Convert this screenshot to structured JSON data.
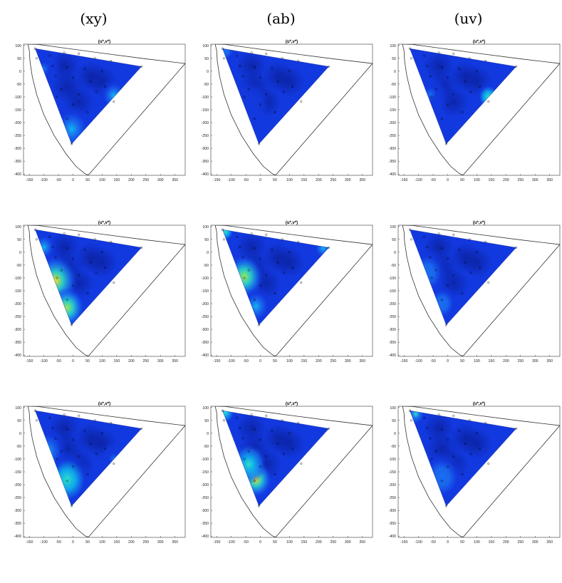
{
  "columns": [
    "(xy)",
    "(ab)",
    "(uv)"
  ],
  "plot_title": "(u*,v*)",
  "chart_data": {
    "type": "heatmap",
    "title": "(u*,v*)",
    "xlim": [
      -170,
      385
    ],
    "ylim": [
      -405,
      105
    ],
    "x_ticks": [
      -150,
      -100,
      -50,
      0,
      50,
      100,
      150,
      200,
      250,
      300,
      350
    ],
    "y_ticks": [
      100,
      50,
      0,
      -50,
      -100,
      -150,
      -200,
      -250,
      -300,
      -350,
      -400
    ],
    "gamut_vertices": [
      [
        -130,
        88
      ],
      [
        235,
        18
      ],
      [
        -5,
        -283
      ]
    ],
    "sample_points": [
      [
        -130,
        88
      ],
      [
        -125,
        50
      ],
      [
        -80,
        60
      ],
      [
        -30,
        72
      ],
      [
        20,
        68
      ],
      [
        75,
        50
      ],
      [
        130,
        40
      ],
      [
        235,
        18
      ],
      [
        -70,
        20
      ],
      [
        -20,
        15
      ],
      [
        40,
        10
      ],
      [
        100,
        0
      ],
      [
        -60,
        -20
      ],
      [
        0,
        -25
      ],
      [
        60,
        -40
      ],
      [
        110,
        -60
      ],
      [
        -40,
        -70
      ],
      [
        20,
        -90
      ],
      [
        80,
        -80
      ],
      [
        140,
        -118
      ],
      [
        -55,
        -100
      ],
      [
        0,
        -130
      ],
      [
        50,
        -160
      ],
      [
        -20,
        -185
      ],
      [
        -5,
        -283
      ]
    ],
    "colormap": [
      "#0a1f9a",
      "#1239e0",
      "#1a6ef0",
      "#10b5ee",
      "#2de0c8",
      "#9ce85a",
      "#f2e21c"
    ],
    "panels": [
      {
        "row": 1,
        "column": "(xy)",
        "title": "(u*,v*)",
        "hotspots": [
          [
            -5,
            -225,
            0.42,
            70
          ],
          [
            140,
            -95,
            0.45,
            50
          ],
          [
            -100,
            10,
            0.18,
            55
          ]
        ]
      },
      {
        "row": 1,
        "column": "(ab)",
        "title": "(u*,v*)",
        "hotspots": [
          [
            -120,
            80,
            0.28,
            35
          ],
          [
            -40,
            -130,
            0.15,
            70
          ]
        ]
      },
      {
        "row": 1,
        "column": "(uv)",
        "title": "(u*,v*)",
        "hotspots": [
          [
            140,
            -100,
            0.52,
            45
          ],
          [
            -60,
            -90,
            0.2,
            60
          ]
        ]
      },
      {
        "row": 2,
        "column": "(xy)",
        "title": "(u*,v*)",
        "hotspots": [
          [
            -60,
            -110,
            0.95,
            75
          ],
          [
            -20,
            -215,
            0.82,
            60
          ],
          [
            -100,
            20,
            0.35,
            45
          ]
        ]
      },
      {
        "row": 2,
        "column": "(ab)",
        "title": "(u*,v*)",
        "hotspots": [
          [
            -55,
            -95,
            0.78,
            65
          ],
          [
            -120,
            80,
            0.55,
            35
          ],
          [
            215,
            15,
            0.4,
            35
          ],
          [
            -15,
            -210,
            0.35,
            55
          ]
        ]
      },
      {
        "row": 2,
        "column": "(uv)",
        "title": "(u*,v*)",
        "hotspots": [
          [
            -70,
            -80,
            0.32,
            70
          ],
          [
            -20,
            -200,
            0.28,
            55
          ]
        ]
      },
      {
        "row": 3,
        "column": "(xy)",
        "title": "(u*,v*)",
        "hotspots": [
          [
            -20,
            -180,
            0.55,
            85
          ],
          [
            -90,
            -70,
            0.4,
            70
          ],
          [
            140,
            -100,
            0.25,
            50
          ]
        ]
      },
      {
        "row": 3,
        "column": "(ab)",
        "title": "(u*,v*)",
        "hotspots": [
          [
            -15,
            -180,
            1.0,
            55
          ],
          [
            -40,
            -120,
            0.6,
            60
          ],
          [
            -120,
            80,
            0.6,
            30
          ]
        ]
      },
      {
        "row": 3,
        "column": "(uv)",
        "title": "(u*,v*)",
        "hotspots": [
          [
            -110,
            75,
            0.5,
            40
          ],
          [
            -20,
            -170,
            0.32,
            75
          ]
        ]
      }
    ]
  }
}
